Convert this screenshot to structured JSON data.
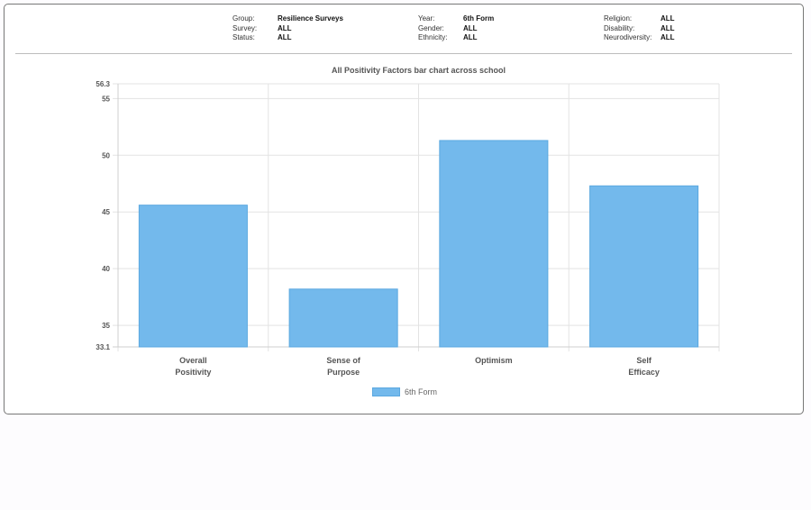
{
  "filters": [
    [
      {
        "label": "Group:",
        "value": "Resilience Surveys"
      },
      {
        "label": "Survey:",
        "value": "ALL"
      },
      {
        "label": "Status:",
        "value": "ALL"
      }
    ],
    [
      {
        "label": "Year:",
        "value": "6th Form"
      },
      {
        "label": "Gender:",
        "value": "ALL"
      },
      {
        "label": "Ethnicity:",
        "value": "ALL"
      }
    ],
    [
      {
        "label": "Religion:",
        "value": "ALL"
      },
      {
        "label": "Disability:",
        "value": "ALL"
      },
      {
        "label": "Neurodiversity:",
        "value": "ALL"
      }
    ]
  ],
  "chart_data": {
    "type": "bar",
    "title": "All Positivity Factors bar chart across school",
    "xlabel": "",
    "ylabel": "",
    "categories": [
      [
        "Overall",
        "Positivity"
      ],
      [
        "Sense of",
        "Purpose"
      ],
      [
        "Optimism"
      ],
      [
        "Self",
        "Efficacy"
      ]
    ],
    "series": [
      {
        "name": "6th Form",
        "values": [
          45.6,
          38.2,
          51.3,
          47.3
        ],
        "color": "#73b9ec",
        "border": "#5ba8e0"
      }
    ],
    "ylim": [
      33.1,
      56.3
    ],
    "yticks": [
      "33.1",
      "35",
      "40",
      "45",
      "50",
      "55",
      "56.3"
    ],
    "grid": true,
    "legend_position": "bottom"
  }
}
